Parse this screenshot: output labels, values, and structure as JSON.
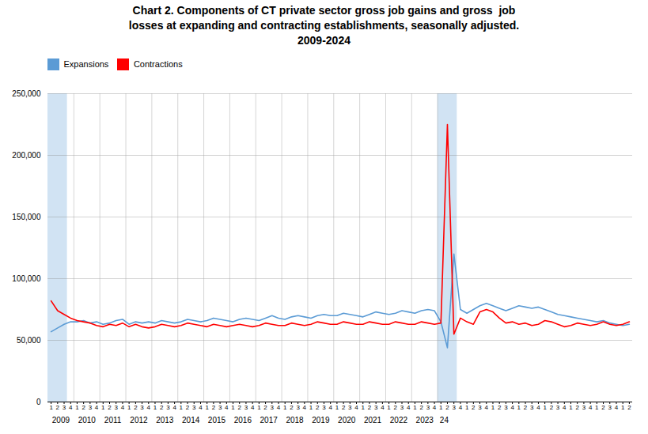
{
  "chart_data": {
    "type": "line",
    "title": "Chart 2. Components of CT private sector gross job gains and gross  job\nlosses at expanding and contracting establishments, seasonally adjusted.\n2009-2024",
    "categories": [
      "1",
      "2",
      "3",
      "4",
      "1",
      "2",
      "3",
      "4",
      "1",
      "2",
      "3",
      "4",
      "1",
      "2",
      "3",
      "4",
      "1",
      "2",
      "3",
      "4",
      "1",
      "2",
      "3",
      "4",
      "1",
      "2",
      "3",
      "4",
      "1",
      "2",
      "3",
      "4",
      "1",
      "2",
      "3",
      "4",
      "1",
      "2",
      "3",
      "4",
      "1",
      "2",
      "3",
      "4",
      "1",
      "2",
      "3",
      "4",
      "1",
      "2",
      "3",
      "4",
      "1",
      "2",
      "3",
      "4",
      "1",
      "2",
      "3",
      "4",
      "1",
      "2",
      "3",
      "4",
      "1",
      "2",
      "3",
      "4",
      "1",
      "2",
      "3",
      "4",
      "1",
      "2",
      "3",
      "4",
      "1",
      "2",
      "3",
      "4",
      "1",
      "2",
      "3",
      "4",
      "1",
      "2",
      "3",
      "4",
      "1",
      "2"
    ],
    "groups": [
      {
        "label": "2009",
        "count": 4
      },
      {
        "label": "2010",
        "count": 4
      },
      {
        "label": "2011",
        "count": 4
      },
      {
        "label": "2012",
        "count": 4
      },
      {
        "label": "2013",
        "count": 4
      },
      {
        "label": "2014",
        "count": 4
      },
      {
        "label": "2015",
        "count": 4
      },
      {
        "label": "2016",
        "count": 4
      },
      {
        "label": "2017",
        "count": 4
      },
      {
        "label": "2018",
        "count": 4
      },
      {
        "label": "2019",
        "count": 4
      },
      {
        "label": "2020",
        "count": 4
      },
      {
        "label": "2021",
        "count": 4
      },
      {
        "label": "2022",
        "count": 4
      },
      {
        "label": "2023",
        "count": 4
      },
      {
        "label": "24",
        "count": 2
      }
    ],
    "bands": [
      {
        "start": 0,
        "end": 3,
        "color": "#BDD7EE"
      },
      {
        "start": 60,
        "end": 63,
        "color": "#BDD7EE"
      }
    ],
    "series": [
      {
        "name": "Expansions",
        "color": "#5B9BD5",
        "values": [
          57000,
          60000,
          63000,
          65000,
          65000,
          66000,
          64000,
          65000,
          63000,
          64000,
          66000,
          67000,
          63000,
          65000,
          64000,
          65000,
          64000,
          66000,
          65000,
          64000,
          65000,
          67000,
          66000,
          65000,
          66000,
          68000,
          67000,
          66000,
          65000,
          67000,
          68000,
          67000,
          66000,
          68000,
          70000,
          68000,
          67000,
          69000,
          70000,
          69000,
          68000,
          70000,
          71000,
          70000,
          70000,
          72000,
          71000,
          70000,
          69000,
          71000,
          73000,
          72000,
          71000,
          72000,
          74000,
          73000,
          72000,
          74000,
          75000,
          74000,
          65000,
          44000,
          120000,
          75000,
          72000,
          75000,
          78000,
          80000,
          78000,
          76000,
          74000,
          76000,
          78000,
          77000,
          76000,
          77000,
          75000,
          73000,
          71000,
          70000,
          69000,
          68000,
          67000,
          66000,
          65000,
          66000,
          64000,
          63000,
          62000,
          63000
        ]
      },
      {
        "name": "Contractions",
        "color": "#FF0000",
        "values": [
          82000,
          74000,
          71000,
          68000,
          66000,
          65000,
          64000,
          62000,
          61000,
          63000,
          62000,
          64000,
          61000,
          63000,
          61000,
          60000,
          61000,
          63000,
          62000,
          61000,
          62000,
          64000,
          63000,
          62000,
          61000,
          63000,
          62000,
          61000,
          62000,
          63000,
          62000,
          61000,
          62000,
          64000,
          63000,
          62000,
          62000,
          64000,
          63000,
          62000,
          63000,
          65000,
          64000,
          63000,
          63000,
          65000,
          64000,
          63000,
          63000,
          65000,
          64000,
          63000,
          63000,
          65000,
          64000,
          63000,
          63000,
          65000,
          64000,
          63000,
          64000,
          225000,
          55000,
          68000,
          65000,
          63000,
          73000,
          75000,
          73000,
          68000,
          64000,
          65000,
          63000,
          64000,
          62000,
          63000,
          66000,
          65000,
          63000,
          61000,
          62000,
          64000,
          63000,
          62000,
          63000,
          65000,
          63000,
          62000,
          63000,
          65000
        ]
      }
    ],
    "ylim": [
      0,
      250000
    ],
    "yticks": [
      0,
      {
        "value": 50000,
        "label": "50,000"
      },
      {
        "value": 100000,
        "label": "100,000"
      },
      {
        "value": 150000,
        "label": "150,000"
      },
      {
        "value": 200000,
        "label": "200,000"
      },
      {
        "value": 250000,
        "label": "250,000"
      }
    ],
    "grid": true,
    "legend": "top"
  }
}
